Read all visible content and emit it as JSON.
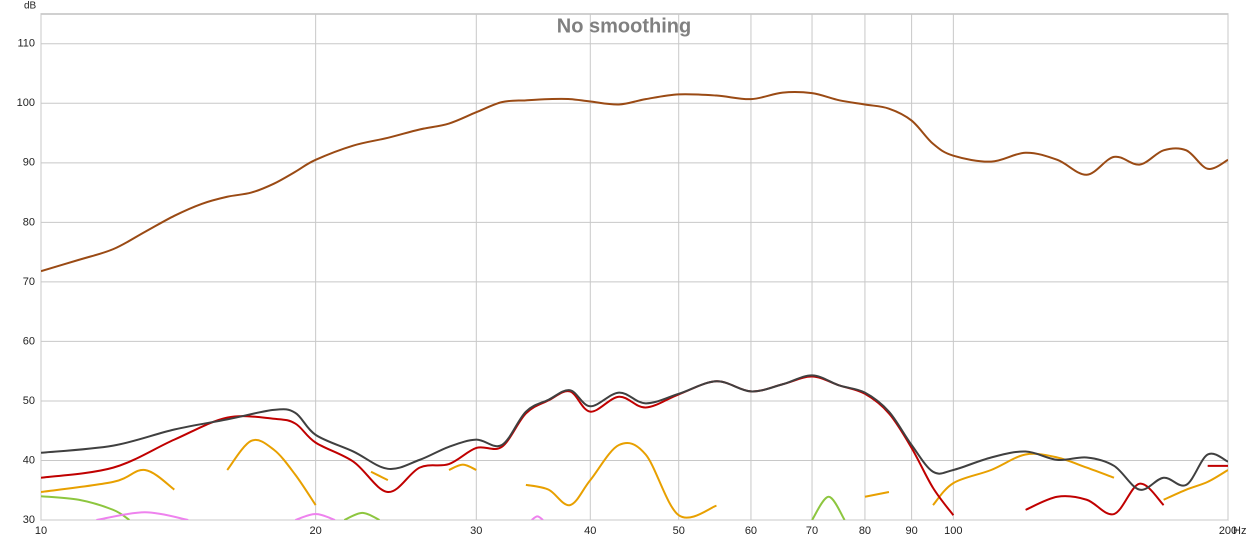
{
  "chart_data": {
    "type": "line",
    "title": "No smoothing",
    "y_label": "dB",
    "x_label": "Hz",
    "log_x": true,
    "grid": true,
    "xlim": [
      10,
      200
    ],
    "ylim": [
      30,
      115
    ],
    "xticks": [
      10,
      20,
      30,
      40,
      50,
      60,
      70,
      80,
      90,
      100,
      200
    ],
    "yticks": [
      30,
      40,
      50,
      60,
      70,
      80,
      90,
      100,
      110
    ],
    "series": [
      {
        "color": "#9a4a14",
        "x": [
          10,
          11,
          12,
          13,
          14,
          15,
          16,
          17,
          18,
          19,
          20,
          22,
          24,
          26,
          28,
          30,
          32,
          34,
          36,
          38,
          40,
          43,
          46,
          50,
          55,
          60,
          65,
          70,
          75,
          80,
          85,
          90,
          95,
          100,
          110,
          120,
          130,
          140,
          150,
          160,
          170,
          180,
          190,
          200
        ],
        "values": [
          71.8,
          73.7,
          75.5,
          78.4,
          81.1,
          83.1,
          84.3,
          85,
          86.5,
          88.5,
          90.5,
          92.9,
          94.2,
          95.6,
          96.6,
          98.5,
          100.2,
          100.5,
          100.7,
          100.7,
          100.3,
          99.8,
          100.7,
          101.5,
          101.3,
          100.7,
          101.8,
          101.7,
          100.5,
          99.8,
          99.1,
          97.1,
          93.2,
          91.2,
          90.2,
          91.7,
          90.5,
          88,
          91,
          89.7,
          92.1,
          92.1,
          89,
          90.5
        ]
      },
      {
        "color": "#e8a000",
        "x": [
          10,
          12,
          13,
          14,
          15,
          16,
          17,
          18,
          19,
          20,
          22,
          23,
          24,
          26,
          28,
          29,
          30,
          32,
          34,
          36,
          38,
          40,
          43,
          46,
          50,
          55,
          60,
          80,
          85,
          90,
          95,
          100,
          110,
          120,
          130,
          140,
          150,
          160,
          170,
          180,
          190,
          200
        ],
        "values": [
          34.7,
          36.4,
          38.4,
          35.1,
          null,
          38.4,
          43.3,
          41.8,
          37.6,
          32.5,
          null,
          38.1,
          36.7,
          null,
          38.4,
          39.3,
          38.4,
          null,
          35.9,
          35.1,
          32.5,
          36.7,
          42.6,
          41,
          30.8,
          32.4,
          null,
          33.9,
          34.7,
          null,
          32.5,
          36.2,
          38.4,
          41,
          40.5,
          38.8,
          37.1,
          null,
          33.4,
          35.1,
          36.4,
          38.4
        ]
      },
      {
        "color": "#8dc63f",
        "x": [
          10,
          11,
          12,
          12.5,
          17,
          21.5,
          22.5,
          23.5,
          50,
          70,
          73,
          76
        ],
        "values": [
          34,
          33.4,
          31.7,
          30,
          null,
          30,
          31.2,
          30,
          null,
          30,
          33.9,
          30
        ]
      },
      {
        "color": "#ee82ee",
        "x": [
          11.5,
          13,
          14.5,
          17,
          19,
          20,
          21,
          30,
          34.5,
          35,
          35.5
        ],
        "values": [
          30,
          31.3,
          30,
          null,
          30,
          31,
          30,
          null,
          30,
          30.6,
          30
        ]
      },
      {
        "color": "#c00000",
        "x": [
          10,
          12,
          14,
          16,
          18,
          19,
          20,
          22,
          24,
          26,
          28,
          30,
          32,
          34,
          36,
          38,
          40,
          43,
          46,
          50,
          55,
          60,
          65,
          70,
          75,
          80,
          85,
          90,
          95,
          100,
          110,
          120,
          130,
          140,
          150,
          160,
          170,
          180,
          190,
          200
        ],
        "values": [
          37.1,
          38.8,
          43.5,
          47.2,
          47,
          46.2,
          43,
          39.8,
          34.7,
          38.8,
          39.4,
          42.1,
          42.3,
          47.9,
          50.1,
          51.6,
          48.2,
          50.7,
          48.9,
          51.1,
          53.3,
          51.6,
          52.8,
          54.1,
          52.6,
          51.2,
          47.9,
          42.1,
          35.4,
          30.8,
          null,
          31.7,
          33.9,
          33.4,
          31,
          36.1,
          32.5,
          null,
          39.1,
          39.1
        ]
      },
      {
        "color": "#404040",
        "x": [
          10,
          12,
          14,
          16,
          18,
          19,
          20,
          22,
          24,
          26,
          28,
          30,
          32,
          34,
          36,
          38,
          40,
          43,
          46,
          50,
          55,
          60,
          65,
          70,
          75,
          80,
          85,
          90,
          95,
          100,
          110,
          120,
          130,
          140,
          150,
          160,
          170,
          180,
          190,
          200
        ],
        "values": [
          41.3,
          42.5,
          45.2,
          46.9,
          48.5,
          48,
          44.3,
          41.5,
          38.6,
          40.1,
          42.3,
          43.5,
          42.6,
          48.2,
          50.2,
          51.8,
          49.1,
          51.4,
          49.6,
          51.2,
          53.3,
          51.6,
          52.8,
          54.3,
          52.6,
          51.4,
          48.2,
          42.6,
          38.1,
          38.4,
          40.5,
          41.5,
          40.1,
          40.5,
          39.1,
          35.1,
          37.1,
          35.9,
          41,
          39.8
        ]
      }
    ]
  }
}
